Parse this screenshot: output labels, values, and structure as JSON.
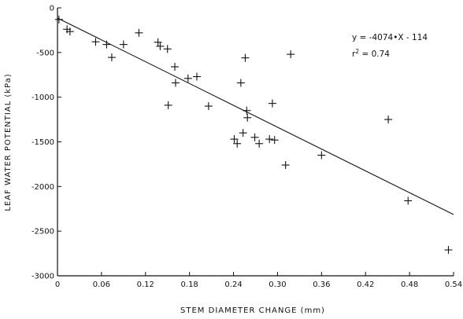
{
  "chart_data": {
    "type": "scatter",
    "title": "",
    "xlabel": "STEM DIAMETER CHANGE (mm)",
    "ylabel": "LEAF WATER POTENTIAL (kPa)",
    "xlim": [
      0,
      0.54
    ],
    "ylim": [
      -3000,
      0
    ],
    "x_ticks": [
      0,
      0.06,
      0.12,
      0.18,
      0.24,
      0.3,
      0.36,
      0.42,
      0.48,
      0.54
    ],
    "x_tick_labels": [
      "0",
      "0.06",
      "0.12",
      "0.18",
      "0.24",
      "0.30",
      "0.36",
      "0.42",
      "0.48",
      "0.54"
    ],
    "y_ticks": [
      0,
      -500,
      -1000,
      -1500,
      -2000,
      -2500,
      -3000
    ],
    "y_tick_labels": [
      "0",
      "-500",
      "-1000",
      "-1500",
      "-2000",
      "-2500",
      "-3000"
    ],
    "grid": false,
    "marker": "plus",
    "color": "#111111",
    "points": [
      {
        "x": 0.002,
        "y": -130
      },
      {
        "x": 0.013,
        "y": -240
      },
      {
        "x": 0.017,
        "y": -265
      },
      {
        "x": 0.052,
        "y": -380
      },
      {
        "x": 0.067,
        "y": -410
      },
      {
        "x": 0.074,
        "y": -555
      },
      {
        "x": 0.09,
        "y": -410
      },
      {
        "x": 0.111,
        "y": -280
      },
      {
        "x": 0.137,
        "y": -385
      },
      {
        "x": 0.14,
        "y": -430
      },
      {
        "x": 0.15,
        "y": -460
      },
      {
        "x": 0.151,
        "y": -1090
      },
      {
        "x": 0.16,
        "y": -660
      },
      {
        "x": 0.161,
        "y": -840
      },
      {
        "x": 0.178,
        "y": -790
      },
      {
        "x": 0.19,
        "y": -770
      },
      {
        "x": 0.206,
        "y": -1100
      },
      {
        "x": 0.241,
        "y": -1470
      },
      {
        "x": 0.245,
        "y": -1520
      },
      {
        "x": 0.25,
        "y": -840
      },
      {
        "x": 0.253,
        "y": -1400
      },
      {
        "x": 0.256,
        "y": -560
      },
      {
        "x": 0.258,
        "y": -1150
      },
      {
        "x": 0.259,
        "y": -1230
      },
      {
        "x": 0.269,
        "y": -1450
      },
      {
        "x": 0.275,
        "y": -1520
      },
      {
        "x": 0.289,
        "y": -1470
      },
      {
        "x": 0.293,
        "y": -1070
      },
      {
        "x": 0.296,
        "y": -1480
      },
      {
        "x": 0.311,
        "y": -1760
      },
      {
        "x": 0.318,
        "y": -520
      },
      {
        "x": 0.36,
        "y": -1650
      },
      {
        "x": 0.451,
        "y": -1250
      },
      {
        "x": 0.478,
        "y": -2160
      },
      {
        "x": 0.533,
        "y": -2710
      }
    ],
    "regression": {
      "slope": -4074,
      "intercept": -114,
      "x_range": [
        0,
        0.54
      ]
    },
    "annotations": {
      "equation": "y = -4074•X - 114",
      "r2_prefix": "r",
      "r2_superscript": "2",
      "r2_suffix": " = 0.74"
    }
  }
}
